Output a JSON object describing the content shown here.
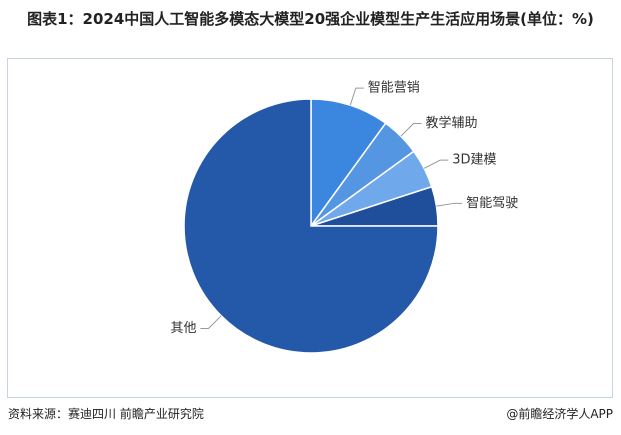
{
  "chart_data": {
    "type": "pie",
    "title": "图表1：2024中国人工智能多模态大模型20强企业模型生产生活应用场景(单位：%)",
    "categories": [
      "智能营销",
      "教学辅助",
      "3D建模",
      "智能驾驶",
      "其他"
    ],
    "values": [
      10,
      5,
      5,
      5,
      75
    ],
    "colors": [
      "#3b86df",
      "#5596e3",
      "#6fa9ec",
      "#1f4f9a",
      "#2459aa"
    ],
    "source": "资料来源：赛迪四川 前瞻产业研究院",
    "brand": "@前瞻经济学人APP"
  }
}
